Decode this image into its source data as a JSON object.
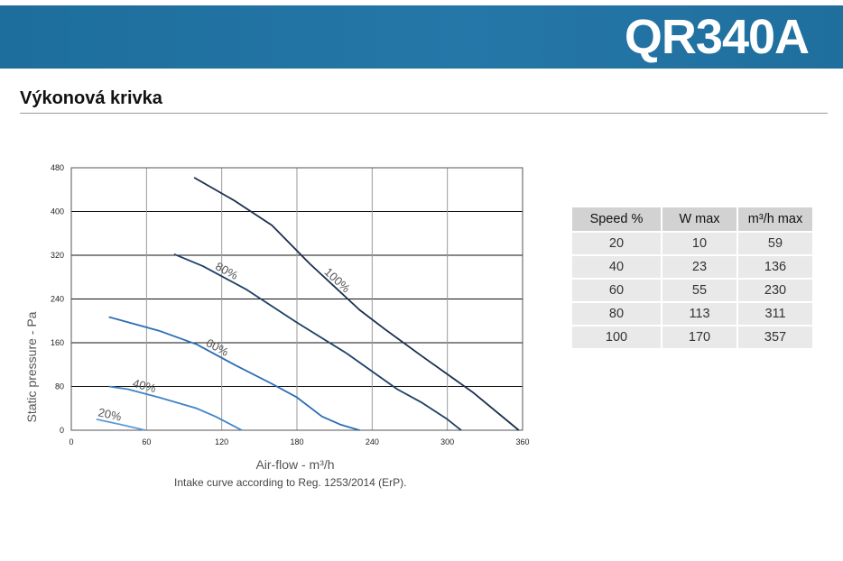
{
  "header": {
    "model": "QR340A",
    "bar_color": "#1d6e9c"
  },
  "section": {
    "title": "Výkonová krivka"
  },
  "caption": "Intake curve according to Reg. 1253/2014 (ErP).",
  "table": {
    "headers": [
      "Speed %",
      "W max",
      "m³/h max"
    ],
    "rows": [
      [
        "20",
        "10",
        "59"
      ],
      [
        "40",
        "23",
        "136"
      ],
      [
        "60",
        "55",
        "230"
      ],
      [
        "80",
        "113",
        "311"
      ],
      [
        "100",
        "170",
        "357"
      ]
    ]
  },
  "chart_data": {
    "type": "line",
    "xlabel": "Air-flow - m³/h",
    "ylabel": "Static pressure - Pa",
    "xlim": [
      0,
      360
    ],
    "ylim": [
      0,
      480
    ],
    "xticks": [
      0,
      60,
      120,
      180,
      240,
      300,
      360
    ],
    "yticks": [
      0,
      80,
      160,
      240,
      320,
      400,
      480
    ],
    "grid": true,
    "series": [
      {
        "name": "20%",
        "color": "#5b9bd5",
        "points": [
          [
            20,
            20
          ],
          [
            40,
            10
          ],
          [
            59,
            0
          ]
        ]
      },
      {
        "name": "40%",
        "color": "#3f83c4",
        "points": [
          [
            30,
            80
          ],
          [
            45,
            75
          ],
          [
            70,
            60
          ],
          [
            100,
            40
          ],
          [
            115,
            25
          ],
          [
            136,
            0
          ]
        ]
      },
      {
        "name": "60%",
        "color": "#2a6db3",
        "points": [
          [
            30,
            207
          ],
          [
            70,
            182
          ],
          [
            100,
            157
          ],
          [
            130,
            120
          ],
          [
            160,
            85
          ],
          [
            180,
            60
          ],
          [
            200,
            25
          ],
          [
            215,
            10
          ],
          [
            230,
            0
          ]
        ]
      },
      {
        "name": "80%",
        "color": "#1d3f66",
        "points": [
          [
            82,
            322
          ],
          [
            105,
            300
          ],
          [
            140,
            257
          ],
          [
            180,
            197
          ],
          [
            220,
            140
          ],
          [
            260,
            75
          ],
          [
            280,
            50
          ],
          [
            300,
            20
          ],
          [
            311,
            0
          ]
        ]
      },
      {
        "name": "100%",
        "color": "#1a2f4d",
        "points": [
          [
            98,
            462
          ],
          [
            130,
            420
          ],
          [
            160,
            375
          ],
          [
            190,
            305
          ],
          [
            230,
            220
          ],
          [
            250,
            185
          ],
          [
            280,
            135
          ],
          [
            320,
            70
          ],
          [
            357,
            0
          ]
        ]
      }
    ]
  }
}
